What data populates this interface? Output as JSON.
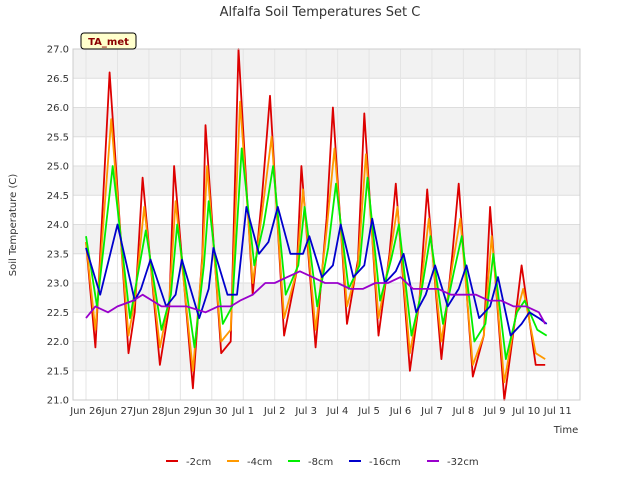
{
  "chart_data": {
    "type": "line",
    "title": "Alfalfa Soil Temperatures Set C",
    "xlabel": "Time",
    "ylabel": "Soil Temperature (C)",
    "badge": "TA_met",
    "ylim": [
      21.0,
      27.0
    ],
    "y_ticks": [
      "21.0",
      "21.5",
      "22.0",
      "22.5",
      "23.0",
      "23.5",
      "24.0",
      "24.5",
      "25.0",
      "25.5",
      "26.0",
      "26.5",
      "27.0"
    ],
    "x_ticks": [
      "Jun 26",
      "Jun 27",
      "Jun 28",
      "Jun 29",
      "Jun 30",
      "Jul 1",
      "Jul 2",
      "Jul 3",
      "Jul 4",
      "Jul 5",
      "Jul 6",
      "Jul 7",
      "Jul 8",
      "Jul 9",
      "Jul 10",
      "Jul 11"
    ],
    "x_tick_days": [
      0,
      1,
      2,
      3,
      4,
      5,
      6,
      7,
      8,
      9,
      10,
      11,
      12,
      13,
      14,
      15
    ],
    "xlim_days": [
      0,
      15.5
    ],
    "grid": true,
    "legend_position": "bottom",
    "series": [
      {
        "name": "-2cm",
        "color": "#dd0000",
        "x": [
          0.0,
          0.3,
          0.75,
          1.35,
          1.55,
          1.8,
          2.35,
          2.65,
          2.8,
          3.4,
          3.7,
          3.8,
          4.3,
          4.6,
          4.85,
          5.3,
          5.6,
          5.85,
          6.3,
          6.7,
          6.85,
          7.3,
          7.65,
          7.85,
          8.3,
          8.65,
          8.85,
          9.3,
          9.65,
          9.85,
          10.3,
          10.6,
          10.85,
          11.3,
          11.65,
          11.85,
          12.3,
          12.65,
          12.85,
          13.3,
          13.65,
          13.85,
          14.3,
          14.6
        ],
        "y": [
          23.7,
          21.9,
          26.6,
          21.8,
          22.5,
          24.8,
          21.6,
          22.6,
          25.0,
          21.2,
          23.5,
          25.7,
          21.8,
          22.0,
          27.0,
          22.8,
          24.5,
          26.2,
          22.1,
          23.2,
          25.0,
          21.9,
          24.1,
          26.0,
          22.3,
          23.4,
          25.9,
          22.1,
          23.5,
          24.7,
          21.5,
          22.7,
          24.6,
          21.7,
          23.5,
          24.7,
          21.4,
          22.1,
          24.3,
          21.0,
          22.4,
          23.3,
          21.6,
          21.6
        ]
      },
      {
        "name": "-4cm",
        "color": "#ff9900",
        "x": [
          0.0,
          0.3,
          0.8,
          1.35,
          1.55,
          1.85,
          2.35,
          2.65,
          2.85,
          3.4,
          3.7,
          3.85,
          4.3,
          4.6,
          4.9,
          5.3,
          5.6,
          5.9,
          6.3,
          6.7,
          6.9,
          7.3,
          7.65,
          7.9,
          8.3,
          8.65,
          8.9,
          9.3,
          9.65,
          9.9,
          10.3,
          10.6,
          10.9,
          11.3,
          11.65,
          11.9,
          12.3,
          12.65,
          12.9,
          13.3,
          13.65,
          13.9,
          14.3,
          14.6
        ],
        "y": [
          23.7,
          22.2,
          25.8,
          22.1,
          22.7,
          24.3,
          21.9,
          22.7,
          24.4,
          21.5,
          23.4,
          25.0,
          22.0,
          22.2,
          26.1,
          23.0,
          24.2,
          25.5,
          22.4,
          23.2,
          24.6,
          22.2,
          23.9,
          25.3,
          22.6,
          23.3,
          25.2,
          22.4,
          23.4,
          24.3,
          21.8,
          22.7,
          24.1,
          22.0,
          23.3,
          24.1,
          21.6,
          22.1,
          23.8,
          21.3,
          22.4,
          22.9,
          21.8,
          21.7
        ]
      },
      {
        "name": "-8cm",
        "color": "#00ee00",
        "x": [
          0.0,
          0.35,
          0.85,
          1.4,
          1.6,
          1.9,
          2.4,
          2.7,
          2.9,
          3.45,
          3.75,
          3.9,
          4.35,
          4.65,
          4.95,
          5.35,
          5.65,
          5.95,
          6.35,
          6.75,
          6.95,
          7.35,
          7.7,
          7.95,
          8.35,
          8.7,
          8.95,
          9.35,
          9.7,
          9.95,
          10.35,
          10.65,
          10.95,
          11.35,
          11.7,
          11.95,
          12.35,
          12.7,
          12.95,
          13.35,
          13.7,
          13.95,
          14.35,
          14.65
        ],
        "y": [
          23.8,
          22.6,
          25.0,
          22.4,
          23.0,
          23.9,
          22.2,
          22.8,
          24.0,
          21.9,
          23.3,
          24.4,
          22.3,
          22.6,
          25.3,
          23.3,
          24.0,
          25.0,
          22.8,
          23.3,
          24.3,
          22.6,
          23.6,
          24.7,
          22.9,
          23.3,
          24.8,
          22.7,
          23.4,
          24.0,
          22.1,
          22.8,
          23.8,
          22.3,
          23.2,
          23.8,
          22.0,
          22.3,
          23.5,
          21.7,
          22.5,
          22.7,
          22.2,
          22.1
        ]
      },
      {
        "name": "-16cm",
        "color": "#0000cc",
        "x": [
          0.0,
          0.45,
          1.0,
          1.55,
          1.75,
          2.05,
          2.55,
          2.85,
          3.05,
          3.6,
          3.9,
          4.05,
          4.5,
          4.8,
          5.1,
          5.5,
          5.8,
          6.1,
          6.5,
          6.9,
          7.1,
          7.5,
          7.85,
          8.1,
          8.5,
          8.85,
          9.1,
          9.5,
          9.85,
          10.1,
          10.5,
          10.8,
          11.1,
          11.5,
          11.85,
          12.1,
          12.5,
          12.85,
          13.1,
          13.5,
          13.85,
          14.1,
          14.4,
          14.65
        ],
        "y": [
          23.6,
          22.8,
          24.0,
          22.7,
          22.9,
          23.4,
          22.6,
          22.8,
          23.4,
          22.4,
          22.9,
          23.6,
          22.8,
          22.8,
          24.3,
          23.5,
          23.7,
          24.3,
          23.5,
          23.5,
          23.8,
          23.1,
          23.3,
          24.0,
          23.1,
          23.3,
          24.1,
          23.0,
          23.2,
          23.5,
          22.5,
          22.8,
          23.3,
          22.6,
          22.9,
          23.3,
          22.4,
          22.6,
          23.1,
          22.1,
          22.3,
          22.5,
          22.4,
          22.3
        ]
      },
      {
        "name": "-32cm",
        "color": "#9900cc",
        "x": [
          0.0,
          0.3,
          0.7,
          1.0,
          1.5,
          1.8,
          2.4,
          2.8,
          3.2,
          3.8,
          4.2,
          4.6,
          4.9,
          5.3,
          5.7,
          6.0,
          6.4,
          6.8,
          7.2,
          7.6,
          8.0,
          8.4,
          8.8,
          9.2,
          9.6,
          10.0,
          10.4,
          10.8,
          11.2,
          11.6,
          12.0,
          12.4,
          12.8,
          13.2,
          13.6,
          14.0,
          14.4,
          14.6
        ],
        "y": [
          22.4,
          22.6,
          22.5,
          22.6,
          22.7,
          22.8,
          22.6,
          22.6,
          22.6,
          22.5,
          22.6,
          22.6,
          22.7,
          22.8,
          23.0,
          23.0,
          23.1,
          23.2,
          23.1,
          23.0,
          23.0,
          22.9,
          22.9,
          23.0,
          23.0,
          23.1,
          22.9,
          22.9,
          22.9,
          22.8,
          22.8,
          22.8,
          22.7,
          22.7,
          22.6,
          22.6,
          22.5,
          22.3
        ]
      }
    ]
  }
}
